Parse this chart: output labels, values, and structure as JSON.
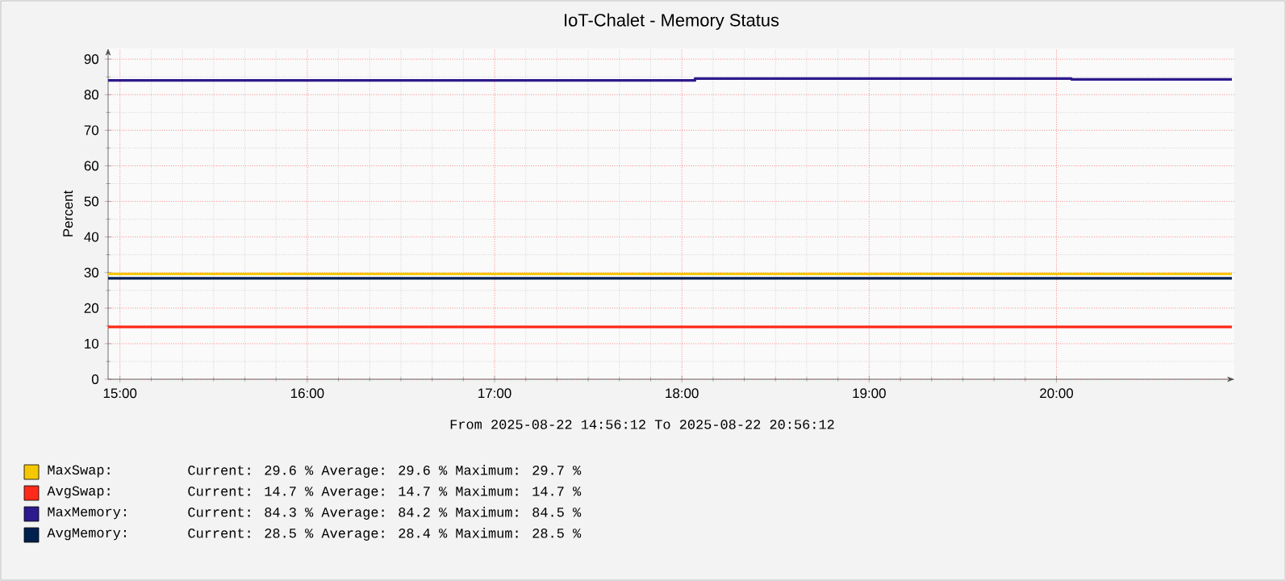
{
  "chart_data": {
    "type": "step",
    "title": "IoT-Chalet - Memory Status",
    "ylabel": "Percent",
    "x": [
      14.9367,
      20.9367
    ],
    "xlim": [
      14.9367,
      20.95
    ],
    "ylim": [
      0,
      93
    ],
    "xticks": [
      {
        "value": 15,
        "label": "15:00"
      },
      {
        "value": 16,
        "label": "16:00"
      },
      {
        "value": 17,
        "label": "17:00"
      },
      {
        "value": 18,
        "label": "18:00"
      },
      {
        "value": 19,
        "label": "19:00"
      },
      {
        "value": 20,
        "label": "20:00"
      }
    ],
    "yticks": [
      0,
      10,
      20,
      30,
      40,
      50,
      60,
      70,
      80,
      90
    ],
    "grid": true,
    "legend": "bottom",
    "series": [
      {
        "name": "MaxSwap:",
        "color": "#f5c800",
        "values": [
          29.6,
          29.6
        ]
      },
      {
        "name": "AvgSwap:",
        "color": "#ff2a1a",
        "values": [
          14.7,
          14.7
        ]
      },
      {
        "name": "MaxMemory:",
        "color": "#2e1a8c",
        "x": [
          14.9367,
          18.07,
          20.08,
          20.9367
        ],
        "values": [
          84.0,
          84.5,
          84.3,
          84.3
        ]
      },
      {
        "name": "AvgMemory:",
        "color": "#00204e",
        "values": [
          28.4,
          28.4
        ]
      }
    ],
    "annotations": [
      "From 2025-08-22 14:56:12 To 2025-08-22 20:56:12",
      "Current: 29.6 % Average: 29.6 % Maximum: 29.7 %",
      "Current: 14.7 % Average: 14.7 % Maximum: 14.7 %",
      "Current: 84.3 % Average: 84.2 % Maximum: 84.5 %",
      "Current: 28.5 % Average: 28.4 % Maximum: 28.5 %"
    ]
  }
}
